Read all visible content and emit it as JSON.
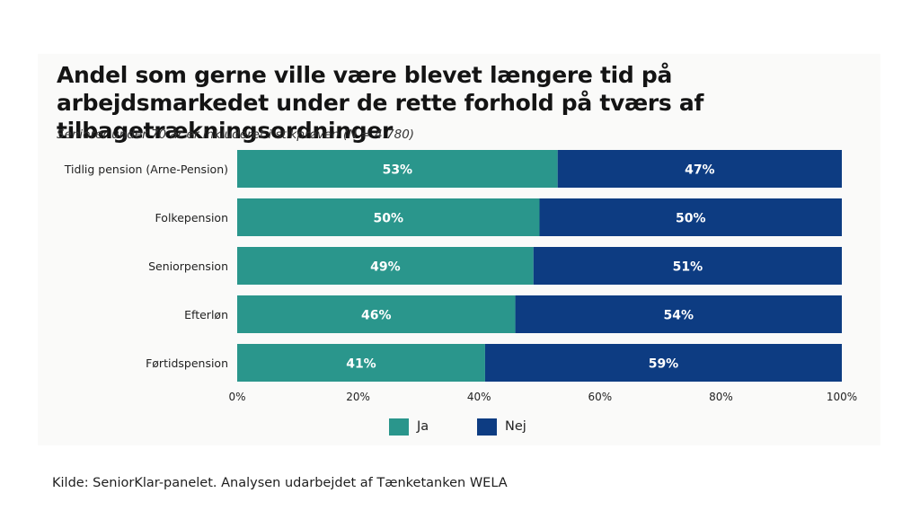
{
  "title": "Andel som gerne ville være blevet længere tid på arbejdsmarkedet under de rette forhold på tværs af tilbagetrækningsordninger",
  "subtitle": "Seniorer under 70 år er inkluderet i stikprøven (N = 4.780)",
  "source": "Kilde: SeniorKlar-panelet. Analysen udarbejdet af Tænketanken WELA",
  "colors": {
    "ja": "#2a968c",
    "nej": "#0d3c82"
  },
  "chart_data": {
    "type": "bar",
    "orientation": "horizontal",
    "stacked": true,
    "categories": [
      "Tidlig pension (Arne-Pension)",
      "Folkepension",
      "Seniorpension",
      "Efterløn",
      "Førtidspension"
    ],
    "series": [
      {
        "name": "Ja",
        "values": [
          53,
          50,
          49,
          46,
          41
        ],
        "labels": [
          "53%",
          "50%",
          "49%",
          "46%",
          "41%"
        ]
      },
      {
        "name": "Nej",
        "values": [
          47,
          50,
          51,
          54,
          59
        ],
        "labels": [
          "47%",
          "50%",
          "51%",
          "54%",
          "59%"
        ]
      }
    ],
    "xlim": [
      0,
      100
    ],
    "xticks": [
      "0%",
      "20%",
      "40%",
      "60%",
      "80%",
      "100%"
    ],
    "legend_position": "bottom"
  }
}
